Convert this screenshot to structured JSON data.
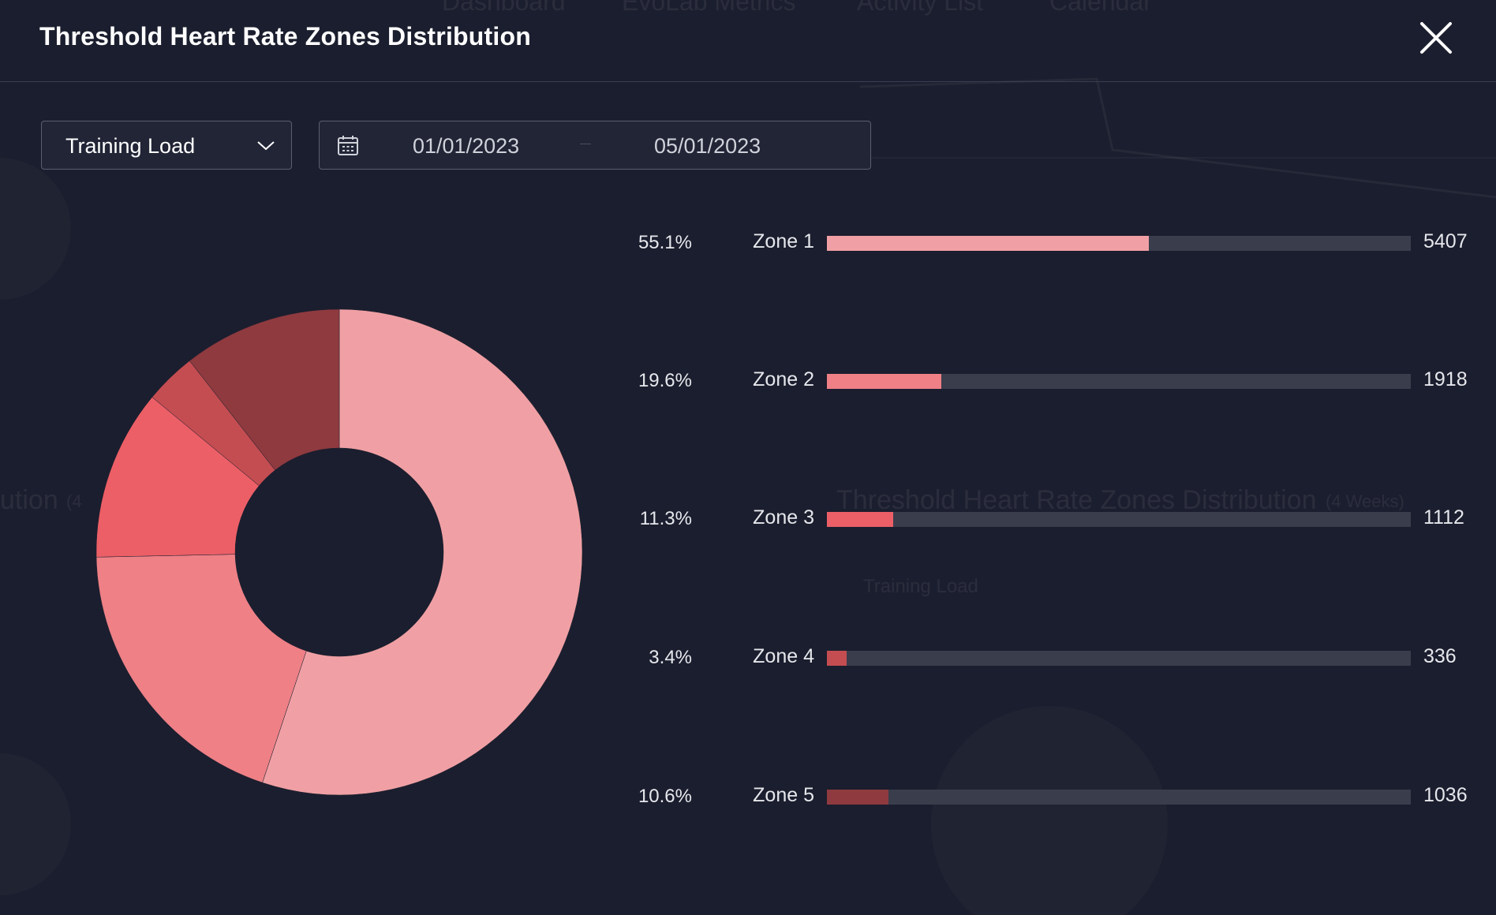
{
  "modal": {
    "title": "Threshold Heart Rate Zones Distribution",
    "close_icon": "close-icon"
  },
  "controls": {
    "metric_select": {
      "value": "Training Load",
      "icon": "chevron-down-icon"
    },
    "date_range": {
      "start": "01/01/2023",
      "end": "05/01/2023",
      "icon": "calendar-icon"
    }
  },
  "colors": {
    "background": "#1b1e2e",
    "track": "#3a3d4c",
    "zone1": "#f0a0a4",
    "zone2": "#ee8086",
    "zone3": "#ec5f67",
    "zone4": "#c44d52",
    "zone5": "#8e3a3f"
  },
  "background_text": [
    "Dashboard",
    "EvoLab Metrics",
    "Activity List",
    "Calendar",
    "Threshold Heart Rate Zones Distribution",
    "(4 Weeks)",
    "Training Load",
    "ution",
    "(4"
  ],
  "chart_data": {
    "type": "pie",
    "variant": "donut",
    "categories": [
      "Zone 1",
      "Zone 2",
      "Zone 3",
      "Zone 4",
      "Zone 5"
    ],
    "values": [
      5407,
      1918,
      1112,
      336,
      1036
    ],
    "percent_labels": [
      "55.1%",
      "19.6%",
      "11.3%",
      "3.4%",
      "10.6%"
    ],
    "value_labels": [
      "5407",
      "1918",
      "1112",
      "336",
      "1036"
    ],
    "bar_max": 9809
  }
}
